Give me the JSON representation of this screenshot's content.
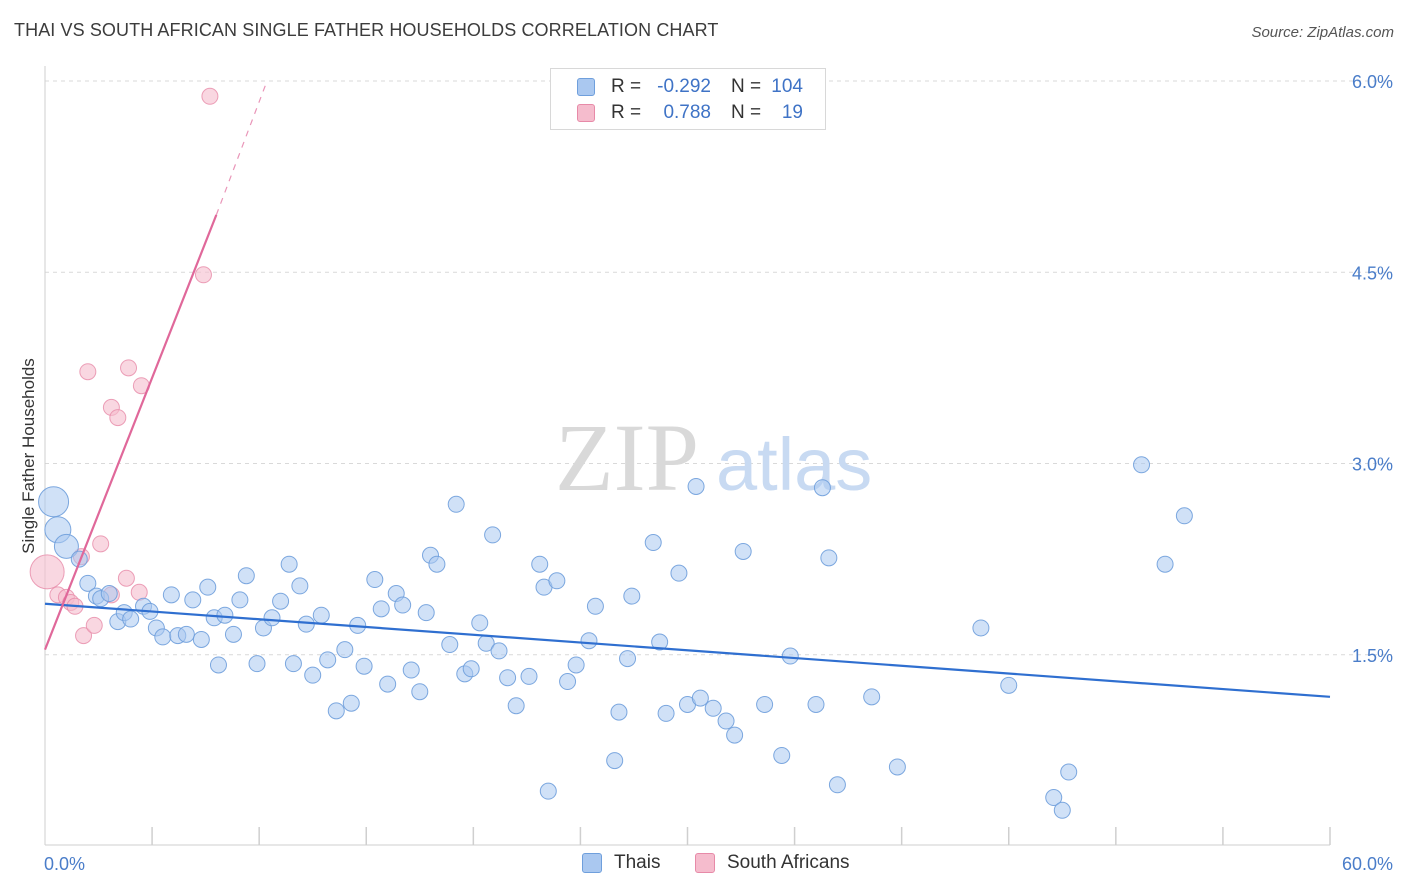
{
  "header": {
    "title": "THAI VS SOUTH AFRICAN SINGLE FATHER HOUSEHOLDS CORRELATION CHART",
    "source": "Source: ZipAtlas.com"
  },
  "watermark": {
    "zip": "ZIP",
    "atlas": "atlas"
  },
  "colors": {
    "thai_fill": "#aac8f0",
    "thai_stroke": "#6f9fdc",
    "thai_line": "#2f6fd0",
    "sa_fill": "#f5bccd",
    "sa_stroke": "#e78aa8",
    "sa_line": "#e0689a",
    "axis_text": "#4a7dc9",
    "grid": "#d9d9d9"
  },
  "legend_top": {
    "rows": [
      {
        "r_label": "R =",
        "r_value": "-0.292",
        "n_label": "N =",
        "n_value": "104"
      },
      {
        "r_label": "R =",
        "r_value": "0.788",
        "n_label": "N =",
        "n_value": "19"
      }
    ]
  },
  "legend_bottom": {
    "thai": "Thais",
    "sa": "South Africans"
  },
  "chart_data": {
    "type": "scatter",
    "title": "THAI VS SOUTH AFRICAN SINGLE FATHER HOUSEHOLDS CORRELATION CHART",
    "xlabel": "",
    "ylabel": "Single Father Households",
    "xlim": [
      0,
      60
    ],
    "ylim": [
      0,
      6.2
    ],
    "x_tick_labels": [
      "0.0%",
      "60.0%"
    ],
    "y_ticks": [
      1.5,
      3.0,
      4.5,
      6.0
    ],
    "y_tick_labels": [
      "1.5%",
      "3.0%",
      "4.5%",
      "6.0%"
    ],
    "grid": true,
    "series": [
      {
        "name": "Thais",
        "r": -0.292,
        "n": 104,
        "trend": {
          "x0": 0,
          "y0": 1.9,
          "x1": 60,
          "y1": 1.17
        },
        "points": [
          [
            0.4,
            2.7
          ],
          [
            0.6,
            2.48
          ],
          [
            1.0,
            2.35
          ],
          [
            1.6,
            2.25
          ],
          [
            2.0,
            2.06
          ],
          [
            2.4,
            1.96
          ],
          [
            2.6,
            1.94
          ],
          [
            3.0,
            1.98
          ],
          [
            3.4,
            1.76
          ],
          [
            3.7,
            1.83
          ],
          [
            4.0,
            1.78
          ],
          [
            4.6,
            1.88
          ],
          [
            4.9,
            1.84
          ],
          [
            5.2,
            1.71
          ],
          [
            5.5,
            1.64
          ],
          [
            5.9,
            1.97
          ],
          [
            6.2,
            1.65
          ],
          [
            6.6,
            1.66
          ],
          [
            6.9,
            1.93
          ],
          [
            7.3,
            1.62
          ],
          [
            7.6,
            2.03
          ],
          [
            7.9,
            1.79
          ],
          [
            8.1,
            1.42
          ],
          [
            8.4,
            1.81
          ],
          [
            8.8,
            1.66
          ],
          [
            9.1,
            1.93
          ],
          [
            9.4,
            2.12
          ],
          [
            9.9,
            1.43
          ],
          [
            10.2,
            1.71
          ],
          [
            10.6,
            1.79
          ],
          [
            11.0,
            1.92
          ],
          [
            11.4,
            2.21
          ],
          [
            11.6,
            1.43
          ],
          [
            11.9,
            2.04
          ],
          [
            12.2,
            1.74
          ],
          [
            12.5,
            1.34
          ],
          [
            12.9,
            1.81
          ],
          [
            13.2,
            1.46
          ],
          [
            13.6,
            1.06
          ],
          [
            14.0,
            1.54
          ],
          [
            14.3,
            1.12
          ],
          [
            14.6,
            1.73
          ],
          [
            14.9,
            1.41
          ],
          [
            15.4,
            2.09
          ],
          [
            15.7,
            1.86
          ],
          [
            16.0,
            1.27
          ],
          [
            16.4,
            1.98
          ],
          [
            16.7,
            1.89
          ],
          [
            17.1,
            1.38
          ],
          [
            17.5,
            1.21
          ],
          [
            17.8,
            1.83
          ],
          [
            18.0,
            2.28
          ],
          [
            18.3,
            2.21
          ],
          [
            18.9,
            1.58
          ],
          [
            19.2,
            2.68
          ],
          [
            19.6,
            1.35
          ],
          [
            19.9,
            1.39
          ],
          [
            20.3,
            1.75
          ],
          [
            20.6,
            1.59
          ],
          [
            20.9,
            2.44
          ],
          [
            21.2,
            1.53
          ],
          [
            21.6,
            1.32
          ],
          [
            22.0,
            1.1
          ],
          [
            22.6,
            1.33
          ],
          [
            23.1,
            2.21
          ],
          [
            23.3,
            2.03
          ],
          [
            23.5,
            0.43
          ],
          [
            23.9,
            2.08
          ],
          [
            24.4,
            1.29
          ],
          [
            24.8,
            1.42
          ],
          [
            25.4,
            1.61
          ],
          [
            25.7,
            1.88
          ],
          [
            26.6,
            0.67
          ],
          [
            26.8,
            1.05
          ],
          [
            27.2,
            1.47
          ],
          [
            27.4,
            1.96
          ],
          [
            28.4,
            2.38
          ],
          [
            28.7,
            1.6
          ],
          [
            29.0,
            1.04
          ],
          [
            29.6,
            2.14
          ],
          [
            30.0,
            1.11
          ],
          [
            30.6,
            1.16
          ],
          [
            30.4,
            2.82
          ],
          [
            31.2,
            1.08
          ],
          [
            31.8,
            0.98
          ],
          [
            32.2,
            0.87
          ],
          [
            32.6,
            2.31
          ],
          [
            33.6,
            1.11
          ],
          [
            34.4,
            0.71
          ],
          [
            34.8,
            1.49
          ],
          [
            36.0,
            1.11
          ],
          [
            36.3,
            2.81
          ],
          [
            36.6,
            2.26
          ],
          [
            37.0,
            0.48
          ],
          [
            38.6,
            1.17
          ],
          [
            39.8,
            0.62
          ],
          [
            43.7,
            1.71
          ],
          [
            45.0,
            1.26
          ],
          [
            47.1,
            0.38
          ],
          [
            47.5,
            0.28
          ],
          [
            47.8,
            0.58
          ],
          [
            51.2,
            2.99
          ],
          [
            52.3,
            2.21
          ],
          [
            53.2,
            2.59
          ]
        ],
        "point_sizes": {
          "default": 8,
          "large": [
            [
              0.4,
              2.7,
              15
            ],
            [
              0.6,
              2.48,
              13
            ],
            [
              1.0,
              2.35,
              12
            ]
          ]
        }
      },
      {
        "name": "South Africans",
        "r": 0.788,
        "n": 19,
        "trend": {
          "x0": 0,
          "y0": 1.54,
          "x1": 8,
          "y1": 4.95,
          "dash_to": {
            "x": 10.3,
            "y": 5.97
          }
        },
        "points": [
          [
            0.1,
            2.15
          ],
          [
            0.6,
            1.97
          ],
          [
            1.0,
            1.95
          ],
          [
            1.2,
            1.91
          ],
          [
            1.4,
            1.88
          ],
          [
            1.7,
            2.27
          ],
          [
            1.8,
            1.65
          ],
          [
            2.0,
            3.72
          ],
          [
            2.3,
            1.73
          ],
          [
            2.6,
            2.37
          ],
          [
            3.1,
            1.97
          ],
          [
            3.1,
            3.44
          ],
          [
            3.4,
            3.36
          ],
          [
            3.8,
            2.1
          ],
          [
            3.9,
            3.75
          ],
          [
            4.4,
            1.99
          ],
          [
            4.5,
            3.61
          ],
          [
            7.4,
            4.48
          ],
          [
            7.7,
            5.88
          ]
        ]
      }
    ]
  }
}
